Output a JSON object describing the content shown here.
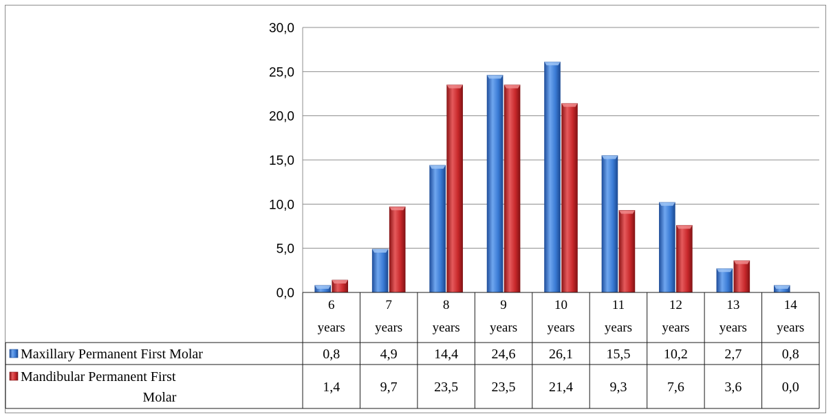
{
  "chart_data": {
    "type": "bar",
    "title": "",
    "xlabel": "",
    "ylabel": "",
    "ylim": [
      0,
      30
    ],
    "yticks": [
      "0,0",
      "5,0",
      "10,0",
      "15,0",
      "20,0",
      "25,0",
      "30,0"
    ],
    "ytick_values": [
      0,
      5,
      10,
      15,
      20,
      25,
      30
    ],
    "grid": true,
    "legend": "data-table-left",
    "categories": [
      [
        "6",
        "years"
      ],
      [
        "7",
        "years"
      ],
      [
        "8",
        "years"
      ],
      [
        "9",
        "years"
      ],
      [
        "10",
        "years"
      ],
      [
        "11",
        "years"
      ],
      [
        "12",
        "years"
      ],
      [
        "13",
        "years"
      ],
      [
        "14",
        "years"
      ]
    ],
    "series": [
      {
        "name": "Maxillary Permanent First Molar",
        "name_lines": [
          "Maxillary Permanent First Molar"
        ],
        "color": "#3a7bd5",
        "values": [
          0.8,
          4.9,
          14.4,
          24.6,
          26.1,
          15.5,
          10.2,
          2.7,
          0.8
        ],
        "labels": [
          "0,8",
          "4,9",
          "14,4",
          "24,6",
          "26,1",
          "15,5",
          "10,2",
          "2,7",
          "0,8"
        ]
      },
      {
        "name": "Mandibular Permanent First Molar",
        "name_lines": [
          "Mandibular Permanent First",
          "Molar"
        ],
        "color": "#c8282b",
        "values": [
          1.4,
          9.7,
          23.5,
          23.5,
          21.4,
          9.3,
          7.6,
          3.6,
          0.0
        ],
        "labels": [
          "1,4",
          "9,7",
          "23,5",
          "23,5",
          "21,4",
          "9,3",
          "7,6",
          "3,6",
          "0,0"
        ]
      }
    ]
  }
}
